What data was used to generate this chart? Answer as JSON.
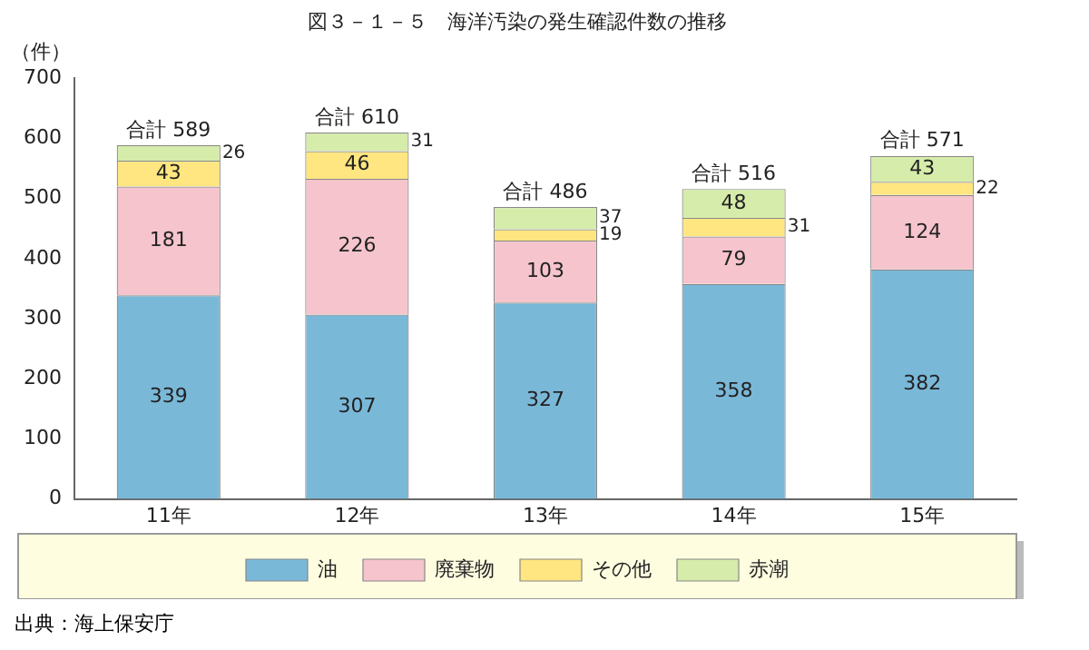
{
  "chart_data": {
    "type": "bar",
    "stacked": true,
    "title": "図３－１－５　海洋汚染の発生確認件数の推移",
    "ylabel": "（件）",
    "categories": [
      "11年",
      "12年",
      "13年",
      "14年",
      "15年"
    ],
    "series": [
      {
        "name": "油",
        "color": "#7ab8d8",
        "values": [
          339,
          307,
          327,
          358,
          382
        ]
      },
      {
        "name": "廃棄物",
        "color": "#f5c4cc",
        "values": [
          181,
          226,
          103,
          79,
          124
        ]
      },
      {
        "name": "その他",
        "color": "#ffe680",
        "values": [
          43,
          46,
          19,
          31,
          22
        ]
      },
      {
        "name": "赤潮",
        "color": "#d6ecaa",
        "values": [
          26,
          31,
          37,
          48,
          43
        ]
      }
    ],
    "totals": [
      "合計 589",
      "合計 610",
      "合計 486",
      "合計 516",
      "合計 571"
    ],
    "ylim": [
      0,
      700
    ],
    "yticks": [
      0,
      100,
      200,
      300,
      400,
      500,
      600,
      700
    ],
    "grid": false,
    "legend": "bottom",
    "data_labels": true,
    "annotations": [
      "出典：海上保安庁"
    ]
  }
}
